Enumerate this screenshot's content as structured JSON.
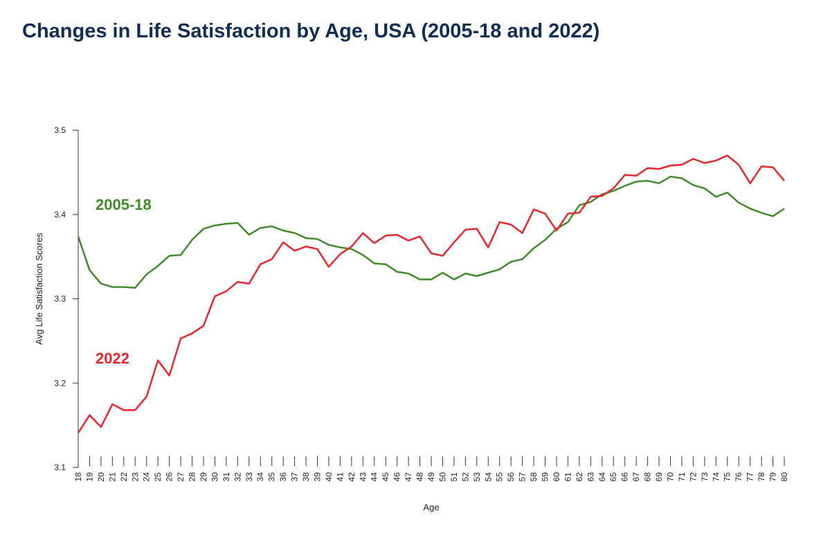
{
  "chart_data": {
    "type": "line",
    "title": "Changes in Life Satisfaction by Age, USA (2005-18 and 2022)",
    "x_label": "Age",
    "y_label": "Avg Life Satisfaction Scores",
    "x": [
      18,
      19,
      20,
      21,
      22,
      23,
      24,
      25,
      26,
      27,
      28,
      29,
      30,
      31,
      32,
      33,
      34,
      35,
      36,
      37,
      38,
      39,
      40,
      41,
      42,
      43,
      44,
      45,
      46,
      47,
      48,
      49,
      50,
      51,
      52,
      53,
      54,
      55,
      56,
      57,
      58,
      59,
      60,
      61,
      62,
      63,
      64,
      65,
      66,
      67,
      68,
      69,
      70,
      71,
      72,
      73,
      74,
      75,
      76,
      77,
      78,
      79,
      80
    ],
    "xlim": [
      18,
      80
    ],
    "ylim": [
      3.1,
      3.5
    ],
    "yticks": [
      3.1,
      3.2,
      3.3,
      3.4,
      3.5
    ],
    "series": [
      {
        "name": "2005-18",
        "color": "#3f8a2a",
        "values": [
          3.374,
          3.334,
          3.318,
          3.314,
          3.314,
          3.313,
          3.329,
          3.339,
          3.351,
          3.352,
          3.37,
          3.383,
          3.387,
          3.389,
          3.39,
          3.376,
          3.384,
          3.386,
          3.381,
          3.378,
          3.372,
          3.371,
          3.364,
          3.361,
          3.359,
          3.352,
          3.342,
          3.341,
          3.332,
          3.33,
          3.323,
          3.323,
          3.331,
          3.323,
          3.33,
          3.327,
          3.331,
          3.335,
          3.344,
          3.347,
          3.36,
          3.37,
          3.383,
          3.391,
          3.411,
          3.415,
          3.424,
          3.428,
          3.434,
          3.439,
          3.44,
          3.437,
          3.445,
          3.443,
          3.435,
          3.431,
          3.421,
          3.426,
          3.414,
          3.407,
          3.402,
          3.398,
          3.407
        ]
      },
      {
        "name": "2022",
        "color": "#e8262b",
        "values": [
          3.141,
          3.162,
          3.148,
          3.175,
          3.168,
          3.168,
          3.184,
          3.227,
          3.209,
          3.253,
          3.259,
          3.268,
          3.303,
          3.309,
          3.32,
          3.318,
          3.341,
          3.347,
          3.367,
          3.357,
          3.362,
          3.359,
          3.338,
          3.353,
          3.362,
          3.378,
          3.366,
          3.375,
          3.376,
          3.369,
          3.374,
          3.354,
          3.351,
          3.367,
          3.382,
          3.383,
          3.361,
          3.391,
          3.388,
          3.378,
          3.406,
          3.401,
          3.381,
          3.401,
          3.402,
          3.421,
          3.422,
          3.431,
          3.447,
          3.446,
          3.455,
          3.454,
          3.458,
          3.459,
          3.466,
          3.461,
          3.464,
          3.47,
          3.459,
          3.437,
          3.457,
          3.456,
          3.44
        ]
      }
    ]
  }
}
